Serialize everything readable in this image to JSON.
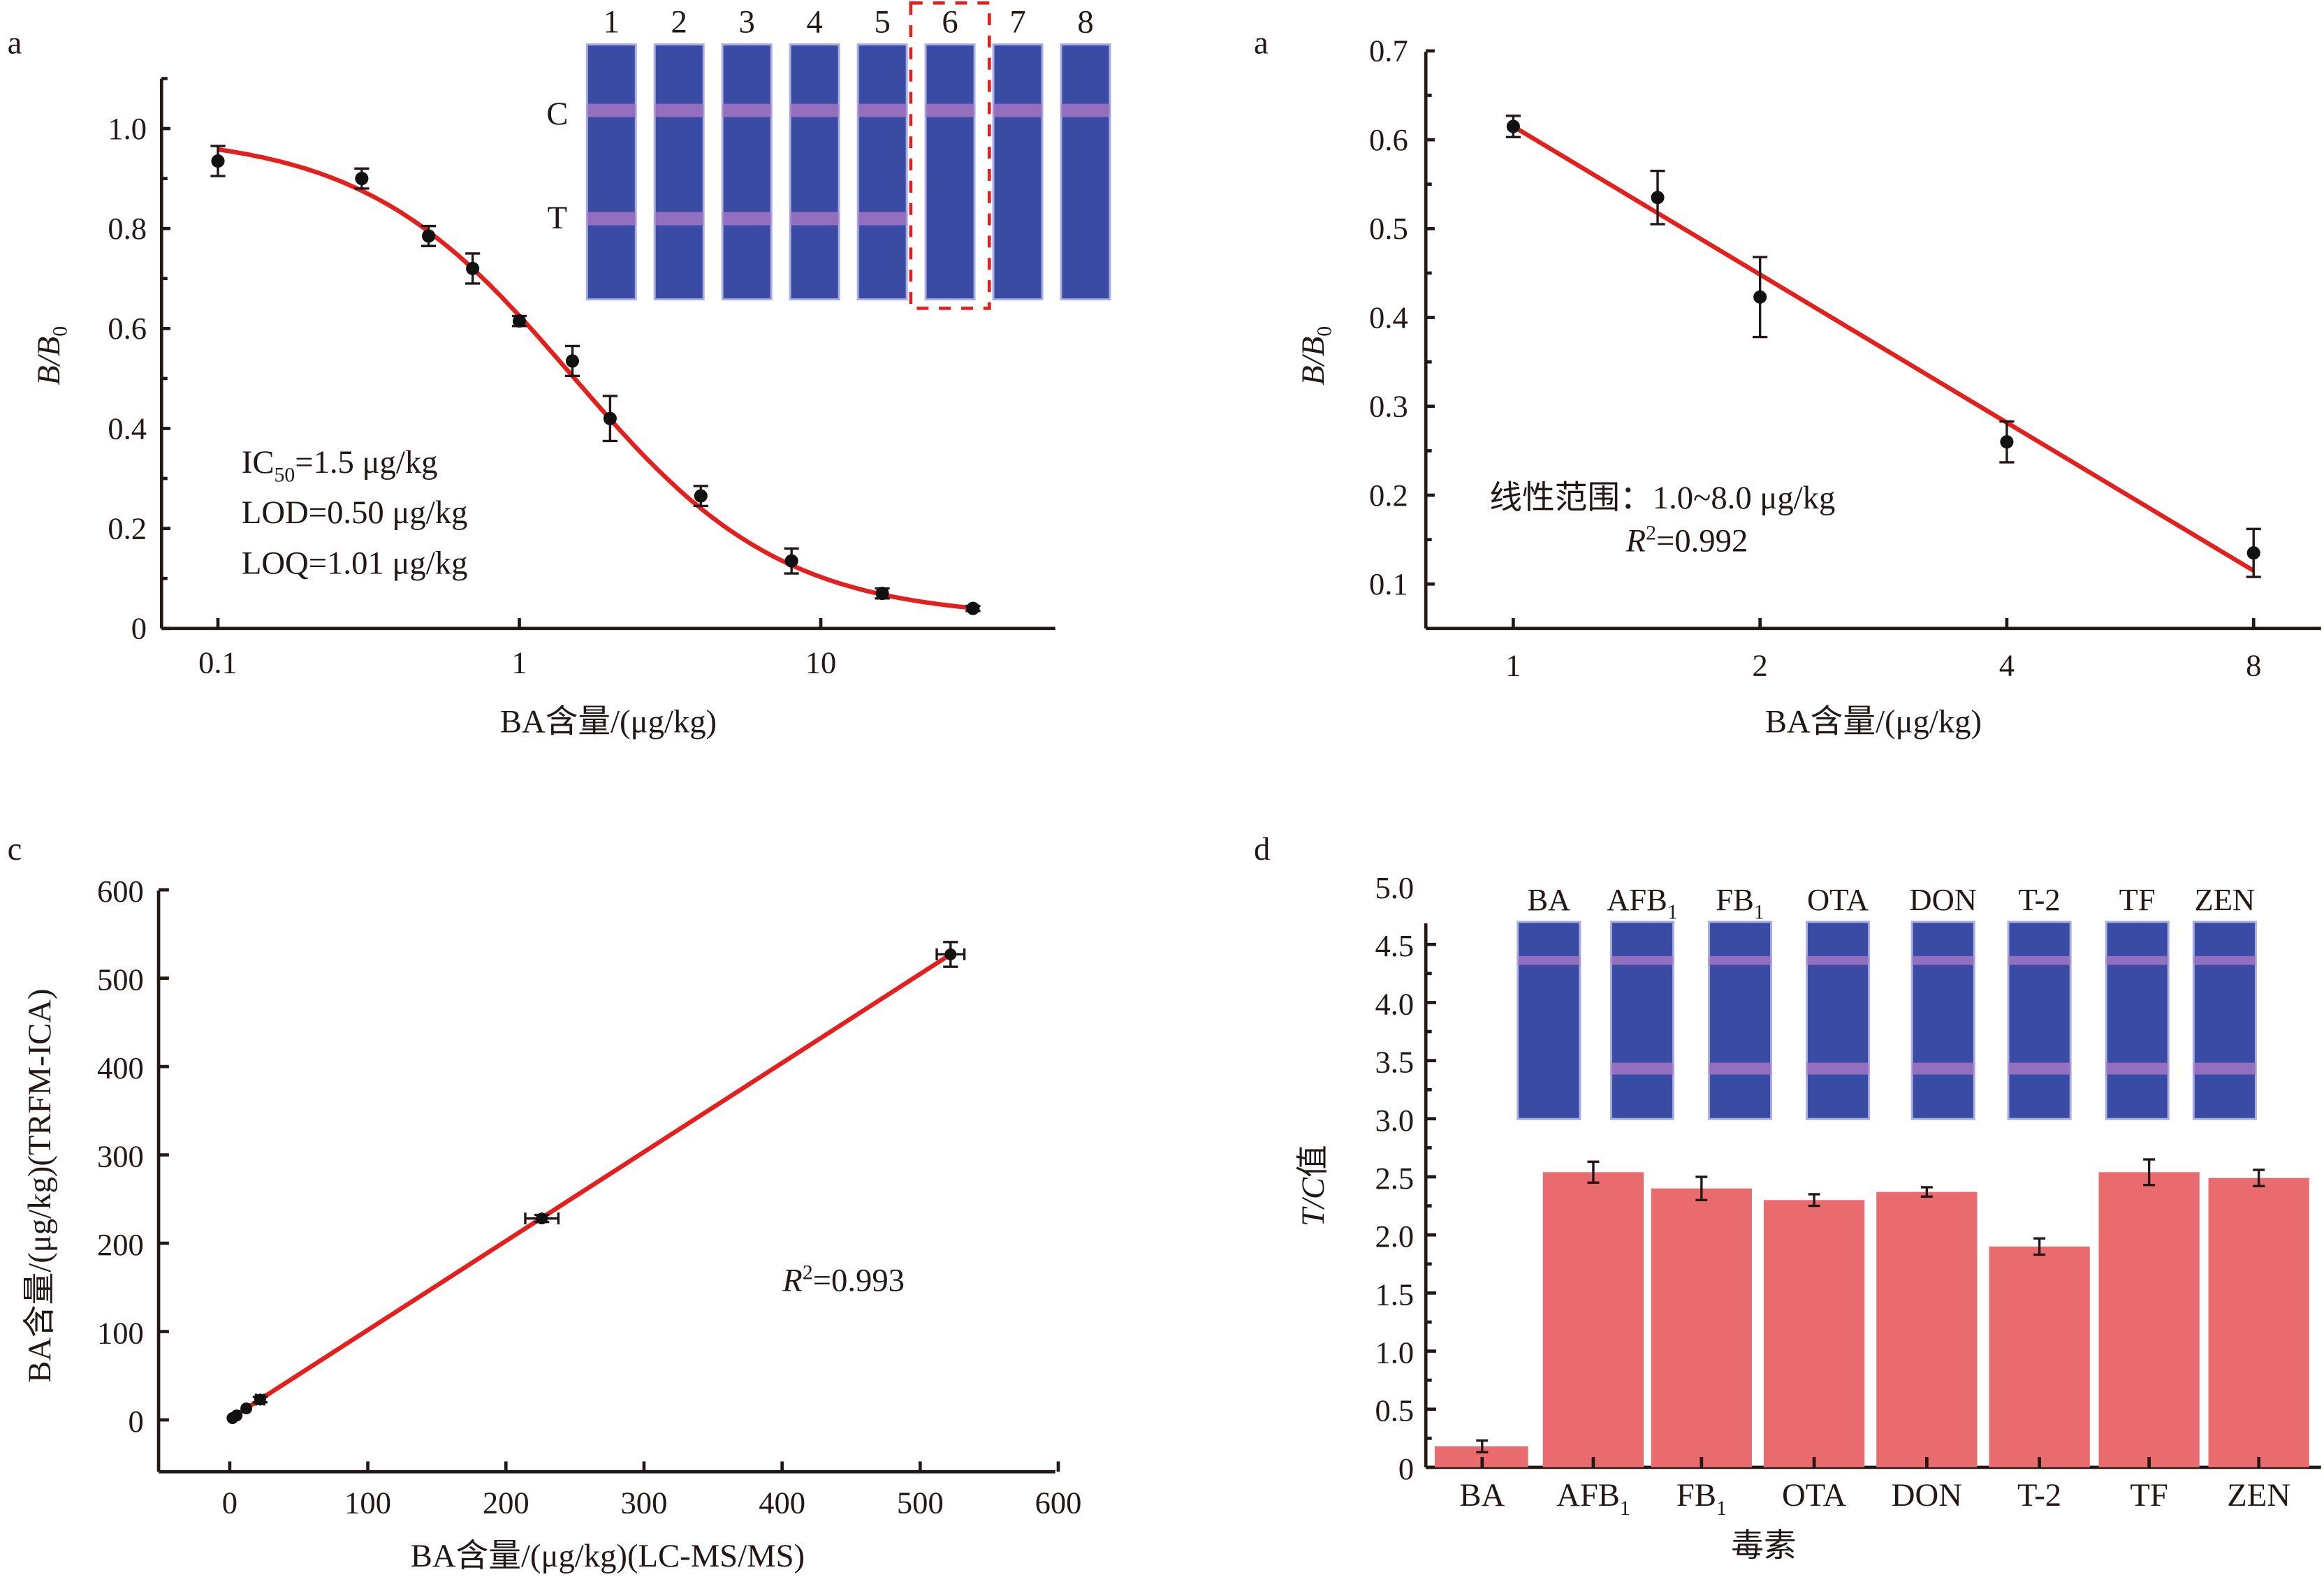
{
  "figure": {
    "panels": [
      "a",
      "a",
      "c",
      "d"
    ]
  },
  "chart_data": [
    {
      "id": "panel-a-left",
      "panel_label": "a",
      "type": "scatter",
      "title": "",
      "xlabel": "BA含量/(μg/kg)",
      "ylabel": "B/B0",
      "xscale": "log10",
      "xlim": [
        0.065,
        60
      ],
      "ylim": [
        0,
        1.1
      ],
      "xticks": [
        {
          "v": 0.1,
          "label": "0.1"
        },
        {
          "v": 1,
          "label": "1"
        },
        {
          "v": 10,
          "label": "10"
        }
      ],
      "yticks": [
        {
          "v": 0,
          "label": "0"
        },
        {
          "v": 0.2,
          "label": "0.2"
        },
        {
          "v": 0.4,
          "label": "0.4"
        },
        {
          "v": 0.6,
          "label": "0.6"
        },
        {
          "v": 0.8,
          "label": "0.8"
        },
        {
          "v": 1.0,
          "label": "1.0"
        }
      ],
      "points": {
        "x": [
          0.1,
          0.3,
          0.5,
          0.7,
          1,
          1.5,
          2,
          4,
          8,
          16,
          32
        ],
        "y": [
          0.935,
          0.9,
          0.785,
          0.72,
          0.615,
          0.535,
          0.42,
          0.265,
          0.135,
          0.07,
          0.04
        ],
        "err": [
          0.03,
          0.02,
          0.02,
          0.03,
          0.01,
          0.03,
          0.045,
          0.02,
          0.025,
          0.01,
          0.005
        ]
      },
      "fit": {
        "type": "4PL",
        "top": 0.99,
        "bottom": 0.02,
        "ic50": 1.5,
        "hill": 1.25,
        "x_range": [
          0.1,
          32
        ]
      },
      "annotations": [
        {
          "pre": "IC",
          "sub": "50",
          "post": "=1.5 μg/kg"
        },
        {
          "pre": "LOD=0.50 μg/kg",
          "sub": "",
          "post": ""
        },
        {
          "pre": "LOQ=1.01 μg/kg",
          "sub": "",
          "post": ""
        }
      ],
      "inset": {
        "strip_labels": [
          "1",
          "2",
          "3",
          "4",
          "5",
          "6",
          "7",
          "8"
        ],
        "line_labels": {
          "control": "C",
          "test": "T"
        },
        "control_intensity": [
          0.8,
          0.8,
          0.8,
          0.8,
          0.8,
          0.8,
          0.8,
          0.8
        ],
        "test_intensity": [
          0.75,
          0.65,
          0.35,
          0.2,
          0.15,
          0.0,
          0.0,
          0.0
        ],
        "highlighted_strip": "6",
        "strip_color": "#3a4ba3",
        "band_color": "#b07bc8",
        "highlight_color": "#e4201f"
      }
    },
    {
      "id": "panel-a-right",
      "panel_label": "a",
      "type": "scatter",
      "title": "",
      "xlabel": "BA含量/(μg/kg)",
      "ylabel": "B/B0",
      "xscale": "log2",
      "xlim": [
        0.7,
        11
      ],
      "ylim": [
        0.05,
        0.7
      ],
      "xticks": [
        {
          "v": 1,
          "label": "1"
        },
        {
          "v": 2,
          "label": "2"
        },
        {
          "v": 4,
          "label": "4"
        },
        {
          "v": 8,
          "label": "8"
        }
      ],
      "yticks": [
        {
          "v": 0.1,
          "label": "0.1"
        },
        {
          "v": 0.2,
          "label": "0.2"
        },
        {
          "v": 0.3,
          "label": "0.3"
        },
        {
          "v": 0.4,
          "label": "0.4"
        },
        {
          "v": 0.5,
          "label": "0.5"
        },
        {
          "v": 0.6,
          "label": "0.6"
        },
        {
          "v": 0.7,
          "label": "0.7"
        }
      ],
      "points": {
        "x": [
          1,
          1.5,
          2,
          4,
          8
        ],
        "y": [
          0.615,
          0.535,
          0.423,
          0.26,
          0.135
        ],
        "err": [
          0.012,
          0.03,
          0.045,
          0.023,
          0.027
        ]
      },
      "fit": {
        "type": "linear_in_log2x",
        "y_at_xmin": 0.615,
        "y_at_xmax": 0.115,
        "x_range": [
          1,
          8
        ]
      },
      "annotations": [
        {
          "pre": "线性范围：1.0~8.0 μg/kg",
          "sub": "",
          "post": ""
        },
        {
          "pre": "R",
          "sup": "2",
          "post": "=0.992"
        }
      ]
    },
    {
      "id": "panel-c",
      "panel_label": "c",
      "type": "scatter",
      "title": "",
      "xlabel": "BA含量/(μg/kg)(LC-MS/MS)",
      "ylabel": "BA含量/(μg/kg)(TRFM-ICA)",
      "xlim": [
        -50,
        600
      ],
      "ylim": [
        -50,
        600
      ],
      "xticks": [
        {
          "v": 0,
          "label": "0"
        },
        {
          "v": 100,
          "label": "100"
        },
        {
          "v": 200,
          "label": "200"
        },
        {
          "v": 300,
          "label": "300"
        },
        {
          "v": 400,
          "label": "400"
        },
        {
          "v": 500,
          "label": "500"
        },
        {
          "v": 600,
          "label": "600"
        }
      ],
      "yticks": [
        {
          "v": 0,
          "label": "0"
        },
        {
          "v": 100,
          "label": "100"
        },
        {
          "v": 200,
          "label": "200"
        },
        {
          "v": 300,
          "label": "300"
        },
        {
          "v": 400,
          "label": "400"
        },
        {
          "v": 500,
          "label": "500"
        },
        {
          "v": 600,
          "label": "600"
        }
      ],
      "points": {
        "x": [
          2,
          5,
          12,
          22,
          226,
          522
        ],
        "y": [
          2,
          5,
          13,
          23,
          228,
          527
        ],
        "xerr": [
          1,
          1,
          2,
          3,
          12,
          10
        ],
        "yerr": [
          1,
          1,
          2,
          3,
          4,
          14
        ]
      },
      "fit": {
        "type": "linear",
        "x_range": [
          0,
          522
        ],
        "y_range": [
          1,
          527
        ]
      },
      "annotations": [
        {
          "pre": "R",
          "sup": "2",
          "post": "=0.993"
        }
      ]
    },
    {
      "id": "panel-d",
      "panel_label": "d",
      "type": "bar",
      "title": "",
      "xlabel": "毒素",
      "ylabel": "T/C值",
      "categories": [
        {
          "main": "BA",
          "sub": ""
        },
        {
          "main": "AFB",
          "sub": "1"
        },
        {
          "main": "FB",
          "sub": "1"
        },
        {
          "main": "OTA",
          "sub": ""
        },
        {
          "main": "DON",
          "sub": ""
        },
        {
          "main": "T-2",
          "sub": ""
        },
        {
          "main": "TF",
          "sub": ""
        },
        {
          "main": "ZEN",
          "sub": ""
        }
      ],
      "values": [
        0.18,
        2.54,
        2.4,
        2.3,
        2.37,
        1.9,
        2.54,
        2.49
      ],
      "errors": [
        0.05,
        0.09,
        0.1,
        0.05,
        0.04,
        0.07,
        0.11,
        0.07
      ],
      "ylim": [
        0,
        5.0
      ],
      "yticks": [
        {
          "v": 0,
          "label": "0"
        },
        {
          "v": 0.5,
          "label": "0.5"
        },
        {
          "v": 1.0,
          "label": "1.0"
        },
        {
          "v": 1.5,
          "label": "1.5"
        },
        {
          "v": 2.0,
          "label": "2.0"
        },
        {
          "v": 2.5,
          "label": "2.5"
        },
        {
          "v": 3.0,
          "label": "3.0"
        },
        {
          "v": 3.5,
          "label": "3.5"
        },
        {
          "v": 4.0,
          "label": "4.0"
        },
        {
          "v": 4.5,
          "label": "4.5"
        },
        {
          "v": 5.0,
          "label": "5.0"
        }
      ],
      "bar_color": "#ea6b6e",
      "inset": {
        "strip_labels": [
          {
            "main": "BA",
            "sub": ""
          },
          {
            "main": "AFB",
            "sub": "1"
          },
          {
            "main": "FB",
            "sub": "1"
          },
          {
            "main": "OTA",
            "sub": ""
          },
          {
            "main": "DON",
            "sub": ""
          },
          {
            "main": "T-2",
            "sub": ""
          },
          {
            "main": "TF",
            "sub": ""
          },
          {
            "main": "ZEN",
            "sub": ""
          }
        ],
        "control_intensity": [
          0.9,
          0.6,
          0.7,
          0.5,
          0.55,
          0.75,
          0.6,
          0.6
        ],
        "test_intensity": [
          0.0,
          0.8,
          0.85,
          0.7,
          0.7,
          0.7,
          0.85,
          0.8
        ]
      }
    }
  ]
}
